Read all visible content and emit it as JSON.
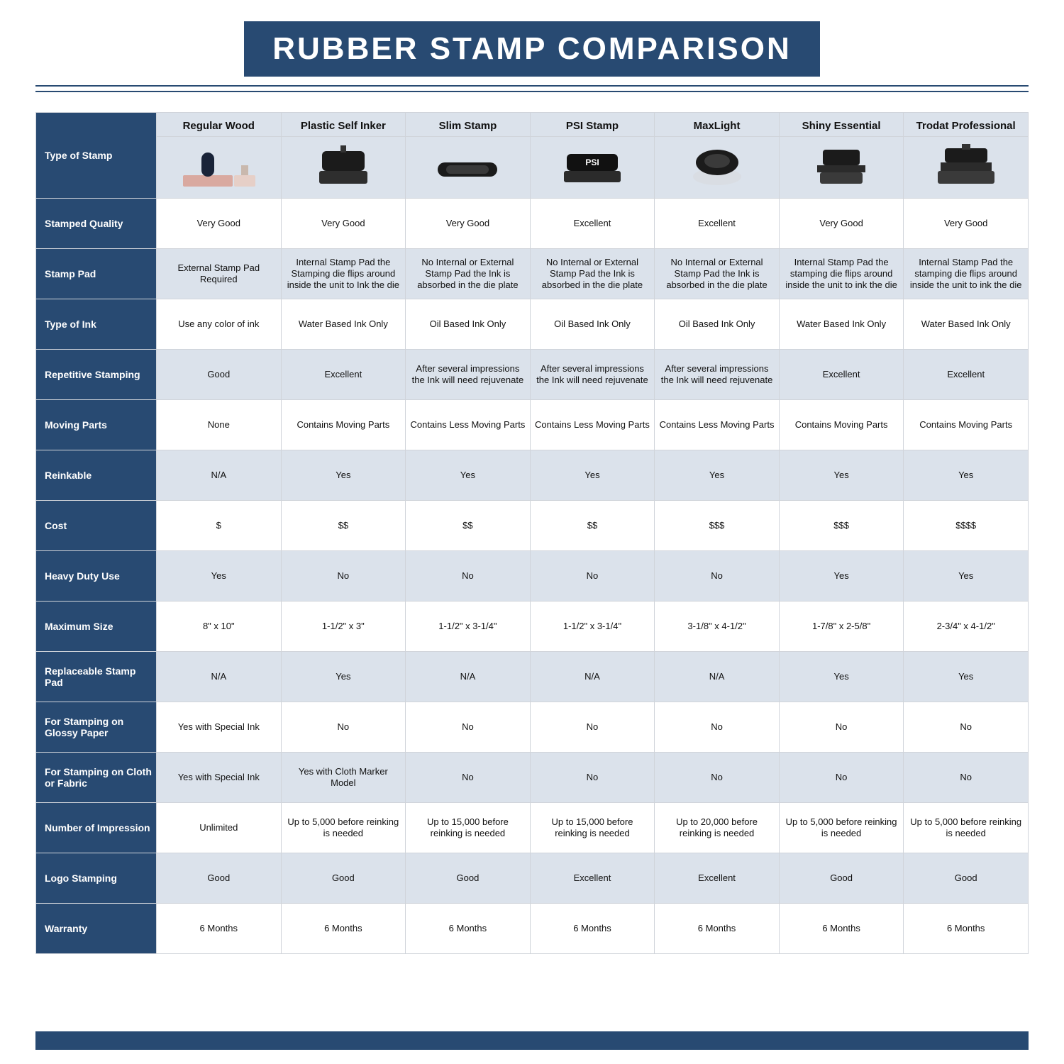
{
  "brand_color": "#284a72",
  "alt_bg": "#dbe2eb",
  "title": "RUBBER STAMP COMPARISON",
  "corner_label": "Type of Stamp",
  "columns": [
    "Regular Wood",
    "Plastic Self Inker",
    "Slim Stamp",
    "PSI Stamp",
    "MaxLight",
    "Shiny Essential",
    "Trodat Professional"
  ],
  "rows": [
    {
      "label": "Stamped Quality",
      "alt": false,
      "cells": [
        "Very Good",
        "Very Good",
        "Very Good",
        "Excellent",
        "Excellent",
        "Very Good",
        "Very Good"
      ]
    },
    {
      "label": "Stamp Pad",
      "alt": true,
      "cells": [
        "External Stamp Pad Required",
        "Internal Stamp Pad the Stamping die flips around inside the unit to Ink the die",
        "No Internal or External Stamp Pad the Ink is absorbed in the die plate",
        "No Internal or External Stamp Pad the Ink is absorbed in the die plate",
        "No Internal or External Stamp Pad the Ink is absorbed in the die plate",
        "Internal Stamp Pad the stamping die flips around inside the unit to ink the die",
        "Internal Stamp Pad the stamping die flips around inside the unit to ink the die"
      ]
    },
    {
      "label": "Type of Ink",
      "alt": false,
      "cells": [
        "Use any color of ink",
        "Water Based Ink Only",
        "Oil Based Ink Only",
        "Oil Based Ink Only",
        "Oil Based Ink Only",
        "Water Based Ink Only",
        "Water Based Ink Only"
      ]
    },
    {
      "label": "Repetitive Stamping",
      "alt": true,
      "cells": [
        "Good",
        "Excellent",
        "After several impressions the Ink will need rejuvenate",
        "After several impressions the Ink will need rejuvenate",
        "After several impressions the Ink will need rejuvenate",
        "Excellent",
        "Excellent"
      ]
    },
    {
      "label": "Moving Parts",
      "alt": false,
      "cells": [
        "None",
        "Contains Moving Parts",
        "Contains Less Moving Parts",
        "Contains Less Moving Parts",
        "Contains Less Moving Parts",
        "Contains Moving Parts",
        "Contains Moving Parts"
      ]
    },
    {
      "label": "Reinkable",
      "alt": true,
      "cells": [
        "N/A",
        "Yes",
        "Yes",
        "Yes",
        "Yes",
        "Yes",
        "Yes"
      ]
    },
    {
      "label": "Cost",
      "alt": false,
      "cells": [
        "$",
        "$$",
        "$$",
        "$$",
        "$$$",
        "$$$",
        "$$$$"
      ]
    },
    {
      "label": "Heavy Duty Use",
      "alt": true,
      "cells": [
        "Yes",
        "No",
        "No",
        "No",
        "No",
        "Yes",
        "Yes"
      ]
    },
    {
      "label": "Maximum Size",
      "alt": false,
      "cells": [
        "8\" x 10\"",
        "1-1/2\" x 3\"",
        "1-1/2\" x 3-1/4\"",
        "1-1/2\" x 3-1/4\"",
        "3-1/8\" x 4-1/2\"",
        "1-7/8\" x 2-5/8\"",
        "2-3/4\" x 4-1/2\""
      ]
    },
    {
      "label": "Replaceable Stamp Pad",
      "alt": true,
      "cells": [
        "N/A",
        "Yes",
        "N/A",
        "N/A",
        "N/A",
        "Yes",
        "Yes"
      ]
    },
    {
      "label": "For Stamping on Glossy Paper",
      "alt": false,
      "cells": [
        "Yes with Special Ink",
        "No",
        "No",
        "No",
        "No",
        "No",
        "No"
      ]
    },
    {
      "label": "For Stamping on Cloth or Fabric",
      "alt": true,
      "cells": [
        "Yes with Special Ink",
        "Yes with Cloth Marker Model",
        "No",
        "No",
        "No",
        "No",
        "No"
      ]
    },
    {
      "label": "Number of Impression",
      "alt": false,
      "cells": [
        "Unlimited",
        "Up to 5,000 before reinking is needed",
        "Up to 15,000 before reinking is needed",
        "Up to 15,000 before reinking is needed",
        "Up to 20,000 before reinking is needed",
        "Up to 5,000 before reinking is needed",
        "Up to 5,000 before reinking is needed"
      ]
    },
    {
      "label": "Logo Stamping",
      "alt": true,
      "cells": [
        "Good",
        "Good",
        "Good",
        "Excellent",
        "Excellent",
        "Good",
        "Good"
      ]
    },
    {
      "label": "Warranty",
      "alt": false,
      "cells": [
        "6 Months",
        "6 Months",
        "6 Months",
        "6 Months",
        "6 Months",
        "6 Months",
        "6 Months"
      ]
    }
  ],
  "stamp_icons": [
    "wood",
    "self-inker",
    "slim",
    "psi",
    "maxlight",
    "shiny",
    "trodat"
  ]
}
